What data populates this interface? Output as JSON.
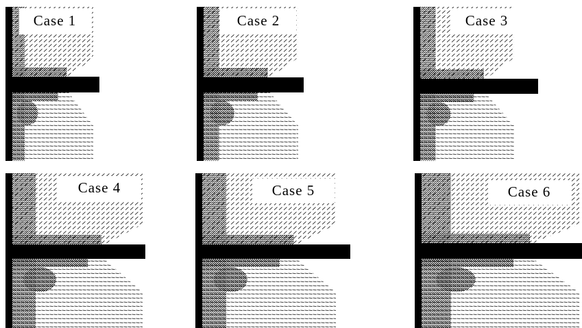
{
  "panels": [
    {
      "label": "Case 1"
    },
    {
      "label": "Case 2"
    },
    {
      "label": "Case 3"
    },
    {
      "label": "Case 4"
    },
    {
      "label": "Case 5"
    },
    {
      "label": "Case 6"
    }
  ]
}
